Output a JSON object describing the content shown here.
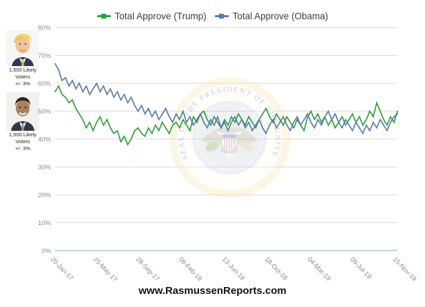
{
  "legend": {
    "position": "top"
  },
  "left_panel": {
    "trump": {
      "photo": "donald-trump-portrait",
      "caption": "1,500 Likely Voters",
      "margin": "+/- 3%"
    },
    "obama": {
      "photo": "barack-obama-portrait",
      "caption": "1,500 Likely Voters",
      "margin": "+/- 3%"
    }
  },
  "footer": {
    "site": "www.RasmussenReports.com"
  },
  "watermark_seal_title": "Seal of the President of the United States",
  "chart_data": {
    "type": "line",
    "title": "",
    "xlabel": "",
    "ylabel": "",
    "ylim": [
      0,
      80
    ],
    "grid": true,
    "legend_position": "top",
    "y_ticks": [
      "80%",
      "70%",
      "60%",
      "50%",
      "40%",
      "30%",
      "20%",
      "10%",
      "0%"
    ],
    "x_tick_labels": [
      "20-Jan-17",
      "25-May-17",
      "28-Sep-17",
      "08-Feb-18",
      "13-Jun-18",
      "18-Oct-18",
      "04-Mar-19",
      "09-Jul-19",
      "15-Nov-19"
    ],
    "x_axis_span_days": 1029,
    "series": [
      {
        "name": "Total Approve (Trump)",
        "color": "#2f9e3c",
        "values": [
          57,
          59,
          56,
          55,
          53,
          54,
          51,
          49,
          47,
          44,
          46,
          43,
          46,
          48,
          45,
          47,
          44,
          42,
          43,
          39,
          41,
          38,
          40,
          43,
          44,
          42,
          41,
          44,
          42,
          45,
          43,
          46,
          44,
          42,
          45,
          46,
          44,
          47,
          45,
          43,
          48,
          46,
          49,
          50,
          47,
          45,
          48,
          46,
          44,
          47,
          45,
          48,
          46,
          49,
          47,
          45,
          48,
          46,
          44,
          47,
          49,
          51,
          48,
          46,
          49,
          47,
          45,
          48,
          46,
          44,
          47,
          45,
          43,
          48,
          50,
          47,
          49,
          46,
          48,
          45,
          47,
          44,
          46,
          48,
          45,
          47,
          49,
          46,
          48,
          45,
          47,
          50,
          48,
          53,
          50,
          47,
          45,
          48,
          46,
          50
        ]
      },
      {
        "name": "Total Approve (Obama)",
        "color": "#5b79ad",
        "values": [
          67,
          65,
          61,
          62,
          59,
          61,
          58,
          60,
          57,
          59,
          56,
          58,
          60,
          57,
          59,
          56,
          58,
          55,
          57,
          54,
          56,
          53,
          55,
          52,
          50,
          52,
          49,
          51,
          48,
          50,
          47,
          49,
          51,
          48,
          46,
          49,
          47,
          50,
          46,
          48,
          45,
          47,
          49,
          46,
          44,
          47,
          45,
          48,
          44,
          46,
          43,
          46,
          48,
          45,
          47,
          44,
          46,
          43,
          45,
          47,
          44,
          42,
          45,
          47,
          44,
          46,
          48,
          45,
          43,
          46,
          48,
          45,
          47,
          49,
          46,
          44,
          47,
          45,
          48,
          50,
          47,
          49,
          46,
          44,
          47,
          45,
          43,
          46,
          44,
          42,
          45,
          43,
          46,
          44,
          47,
          45,
          43,
          46,
          48,
          49
        ]
      }
    ]
  }
}
